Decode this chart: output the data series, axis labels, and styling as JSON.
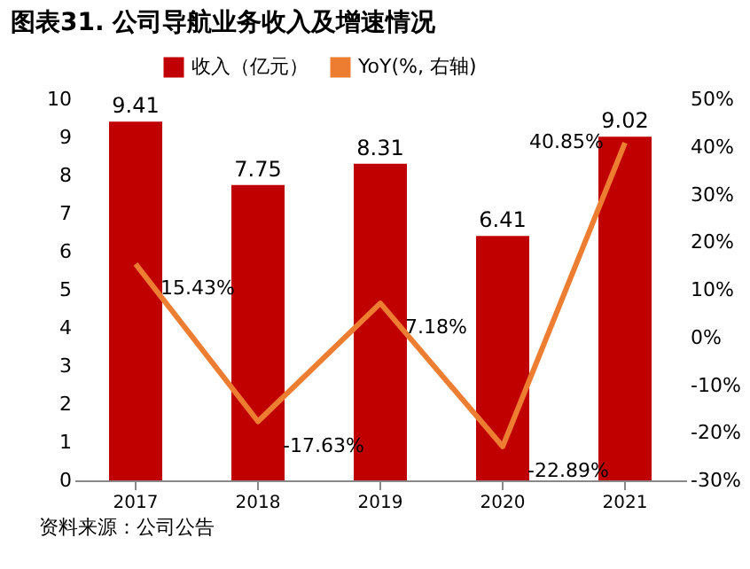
{
  "chart_data": {
    "type": "bar",
    "title": "图表31. 公司导航业务收入及增速情况",
    "categories": [
      "2017",
      "2018",
      "2019",
      "2020",
      "2021"
    ],
    "series": [
      {
        "name": "收入（亿元）",
        "color": "#c00000",
        "values": [
          9.41,
          7.75,
          8.31,
          6.41,
          9.02
        ],
        "value_labels": [
          "9.41",
          "7.75",
          "8.31",
          "6.41",
          "9.02"
        ]
      },
      {
        "name": "YoY(%, 右轴)",
        "type": "line",
        "axis": "y2",
        "color": "#ed7d31",
        "values": [
          15.43,
          -17.63,
          7.18,
          -22.89,
          40.85
        ],
        "value_labels": [
          "15.43%",
          "-17.63%",
          "7.18%",
          "-22.89%",
          "40.85%"
        ]
      }
    ],
    "ylim": [
      0,
      10
    ],
    "yticks": [
      0,
      1,
      2,
      3,
      4,
      5,
      6,
      7,
      8,
      9,
      10
    ],
    "y2lim": [
      -30,
      50
    ],
    "y2ticks": [
      {
        "value": -30,
        "label": "-30%"
      },
      {
        "value": -20,
        "label": "-20%"
      },
      {
        "value": -10,
        "label": "-10%"
      },
      {
        "value": 0,
        "label": "0%"
      },
      {
        "value": 10,
        "label": "10%"
      },
      {
        "value": 20,
        "label": "20%"
      },
      {
        "value": 30,
        "label": "30%"
      },
      {
        "value": 40,
        "label": "40%"
      },
      {
        "value": 50,
        "label": "50%"
      }
    ],
    "legend": "top",
    "grid": false,
    "line_style": "solid",
    "marker": "none",
    "annotations": [
      "资料来源：公司公告"
    ]
  }
}
